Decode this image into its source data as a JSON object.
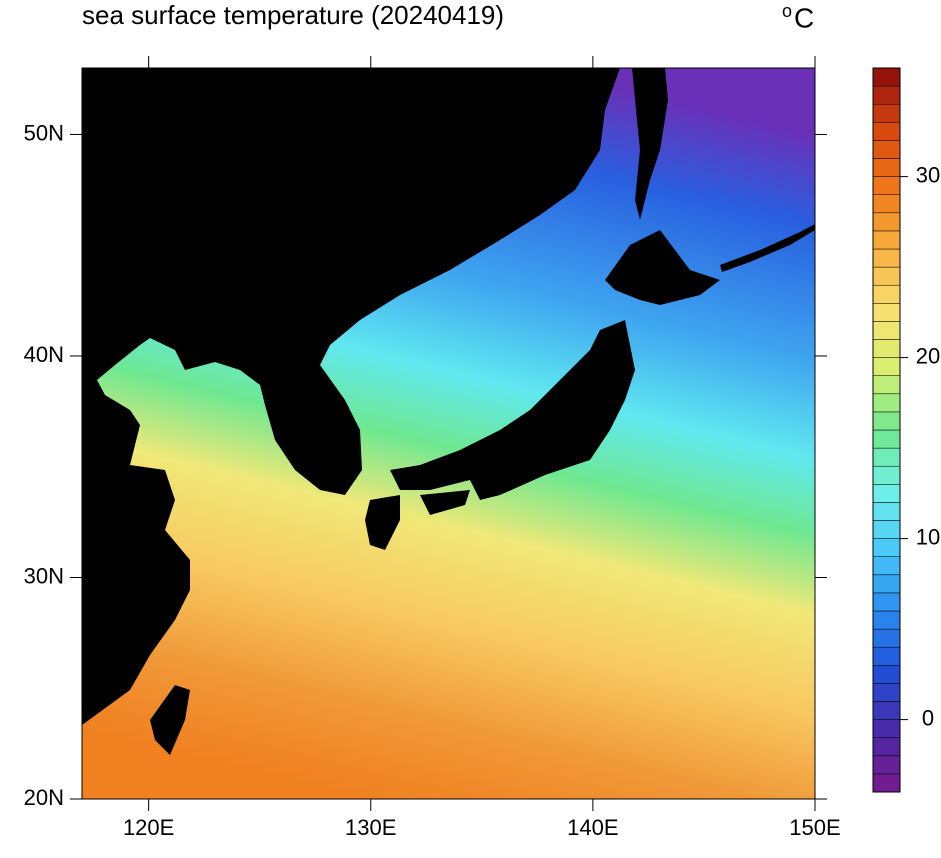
{
  "map": {
    "title": "sea surface temperature (20240419)",
    "unit_superscript": "o",
    "unit": "C",
    "xlim": [
      117,
      150
    ],
    "ylim": [
      20,
      53
    ],
    "xticks": [
      {
        "value": 120,
        "label": "120E"
      },
      {
        "value": 130,
        "label": "130E"
      },
      {
        "value": 140,
        "label": "140E"
      },
      {
        "value": 150,
        "label": "150E"
      }
    ],
    "yticks": [
      {
        "value": 20,
        "label": "20N"
      },
      {
        "value": 30,
        "label": "30N"
      },
      {
        "value": 40,
        "label": "40N"
      },
      {
        "value": 50,
        "label": "50N"
      }
    ],
    "colorbar": {
      "range": [
        -4,
        36
      ],
      "ticks": [
        0,
        10,
        20,
        30
      ],
      "colors": [
        "#7a1a8a",
        "#4a2aa8",
        "#2050d8",
        "#2a8cf0",
        "#48c8f8",
        "#70f0e8",
        "#70e890",
        "#d8f070",
        "#f8e070",
        "#f8b040",
        "#f07818",
        "#d84810",
        "#8a0a0a"
      ]
    }
  }
}
